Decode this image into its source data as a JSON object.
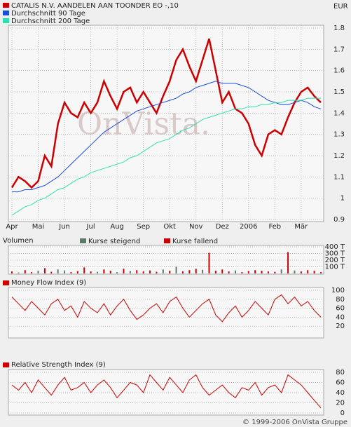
{
  "chart_data": [
    {
      "type": "line",
      "y_label": "EUR",
      "categories": [
        "Apr",
        null,
        null,
        null,
        "Mai",
        null,
        null,
        null,
        "Jun",
        null,
        null,
        null,
        "Jul",
        null,
        null,
        null,
        "Aug",
        null,
        null,
        null,
        "Sep",
        null,
        null,
        null,
        "Okt",
        null,
        null,
        null,
        "Nov",
        null,
        null,
        null,
        "Dez",
        null,
        null,
        null,
        "2006",
        null,
        null,
        null,
        "Feb",
        null,
        null,
        null,
        "Mär",
        null,
        null,
        null
      ],
      "ylim": [
        0.9,
        1.8
      ],
      "yticks": [
        0.9,
        1.0,
        1.1,
        1.2,
        1.3,
        1.4,
        1.5,
        1.6,
        1.7,
        1.8
      ],
      "grid": true,
      "series": [
        {
          "name": "CATALIS N.V. AANDELEN AAN TOONDER EO -,10",
          "color": "#cc0000",
          "values": [
            1.05,
            1.1,
            1.08,
            1.05,
            1.08,
            1.2,
            1.15,
            1.35,
            1.45,
            1.4,
            1.38,
            1.45,
            1.4,
            1.45,
            1.55,
            1.48,
            1.42,
            1.5,
            1.52,
            1.45,
            1.5,
            1.45,
            1.4,
            1.48,
            1.55,
            1.65,
            1.7,
            1.62,
            1.55,
            1.65,
            1.75,
            1.6,
            1.45,
            1.5,
            1.42,
            1.4,
            1.35,
            1.25,
            1.2,
            1.3,
            1.32,
            1.3,
            1.38,
            1.45,
            1.5,
            1.52,
            1.48,
            1.45
          ]
        },
        {
          "name": "Durchschnitt 90 Tage",
          "color": "#1a4fd6",
          "values": [
            1.03,
            1.03,
            1.04,
            1.04,
            1.05,
            1.06,
            1.08,
            1.1,
            1.13,
            1.16,
            1.19,
            1.22,
            1.25,
            1.28,
            1.31,
            1.33,
            1.35,
            1.37,
            1.39,
            1.41,
            1.42,
            1.43,
            1.44,
            1.45,
            1.46,
            1.47,
            1.49,
            1.5,
            1.52,
            1.53,
            1.54,
            1.55,
            1.54,
            1.54,
            1.54,
            1.53,
            1.52,
            1.5,
            1.48,
            1.46,
            1.45,
            1.44,
            1.44,
            1.45,
            1.46,
            1.45,
            1.43,
            1.42
          ]
        },
        {
          "name": "Durchschnitt 200 Tage",
          "color": "#2ee0b0",
          "values": [
            0.92,
            0.94,
            0.96,
            0.97,
            0.99,
            1.0,
            1.02,
            1.04,
            1.05,
            1.07,
            1.09,
            1.1,
            1.12,
            1.13,
            1.14,
            1.15,
            1.16,
            1.17,
            1.19,
            1.2,
            1.22,
            1.24,
            1.26,
            1.27,
            1.28,
            1.3,
            1.32,
            1.33,
            1.35,
            1.37,
            1.38,
            1.39,
            1.4,
            1.41,
            1.42,
            1.42,
            1.43,
            1.43,
            1.44,
            1.44,
            1.45,
            1.45,
            1.46,
            1.46,
            1.46,
            1.47,
            1.47,
            1.47
          ]
        }
      ]
    },
    {
      "type": "bar",
      "title": "Volumen",
      "ylim": [
        0,
        400
      ],
      "yticks": [
        {
          "value": 100,
          "label": "100 T"
        },
        {
          "value": 200,
          "label": "200 T"
        },
        {
          "value": 300,
          "label": "300 T"
        },
        {
          "value": 400,
          "label": "400 T"
        }
      ],
      "grid": true,
      "series": [
        {
          "name": "Kurse steigend",
          "color": "#5f7a66",
          "values": [
            null,
            15,
            null,
            null,
            40,
            null,
            null,
            60,
            45,
            null,
            null,
            null,
            null,
            25,
            null,
            null,
            20,
            null,
            35,
            null,
            null,
            null,
            null,
            60,
            null,
            100,
            null,
            null,
            null,
            55,
            null,
            null,
            null,
            null,
            45,
            null,
            null,
            null,
            null,
            null,
            null,
            60,
            null,
            45,
            null,
            null,
            null,
            null
          ]
        },
        {
          "name": "Kurse fallend",
          "color": "#cc0000",
          "values": [
            30,
            null,
            50,
            20,
            null,
            80,
            25,
            null,
            null,
            20,
            35,
            90,
            30,
            null,
            60,
            40,
            null,
            70,
            null,
            50,
            30,
            45,
            25,
            null,
            40,
            null,
            30,
            50,
            70,
            null,
            310,
            40,
            60,
            30,
            null,
            20,
            35,
            50,
            40,
            30,
            25,
            null,
            320,
            null,
            30,
            50,
            40,
            20
          ]
        }
      ]
    },
    {
      "type": "line",
      "title": "Money Flow Index (9)",
      "color": "#cc0000",
      "ylim": [
        0,
        100
      ],
      "yticks": [
        20,
        40,
        60,
        80,
        100
      ],
      "grid": true,
      "values": [
        85,
        70,
        55,
        75,
        60,
        45,
        70,
        80,
        55,
        65,
        40,
        75,
        60,
        50,
        70,
        45,
        65,
        80,
        55,
        35,
        45,
        60,
        70,
        50,
        75,
        85,
        60,
        40,
        55,
        70,
        80,
        45,
        30,
        50,
        65,
        40,
        55,
        75,
        60,
        45,
        80,
        90,
        70,
        85,
        65,
        75,
        55,
        40
      ]
    },
    {
      "type": "line",
      "title": "Relative Strength Index (9)",
      "color": "#cc0000",
      "ylim": [
        0,
        80
      ],
      "yticks": [
        0,
        20,
        40,
        60,
        80
      ],
      "grid": true,
      "values": [
        55,
        45,
        60,
        40,
        65,
        50,
        35,
        55,
        70,
        45,
        50,
        60,
        40,
        55,
        65,
        50,
        30,
        45,
        60,
        55,
        40,
        75,
        60,
        45,
        70,
        55,
        40,
        65,
        75,
        50,
        35,
        45,
        55,
        40,
        30,
        50,
        45,
        60,
        35,
        50,
        55,
        40,
        75,
        65,
        55,
        40,
        25,
        10
      ]
    }
  ],
  "watermark": "OnVista.",
  "footer": "© 1999-2006 OnVista Gruppe"
}
